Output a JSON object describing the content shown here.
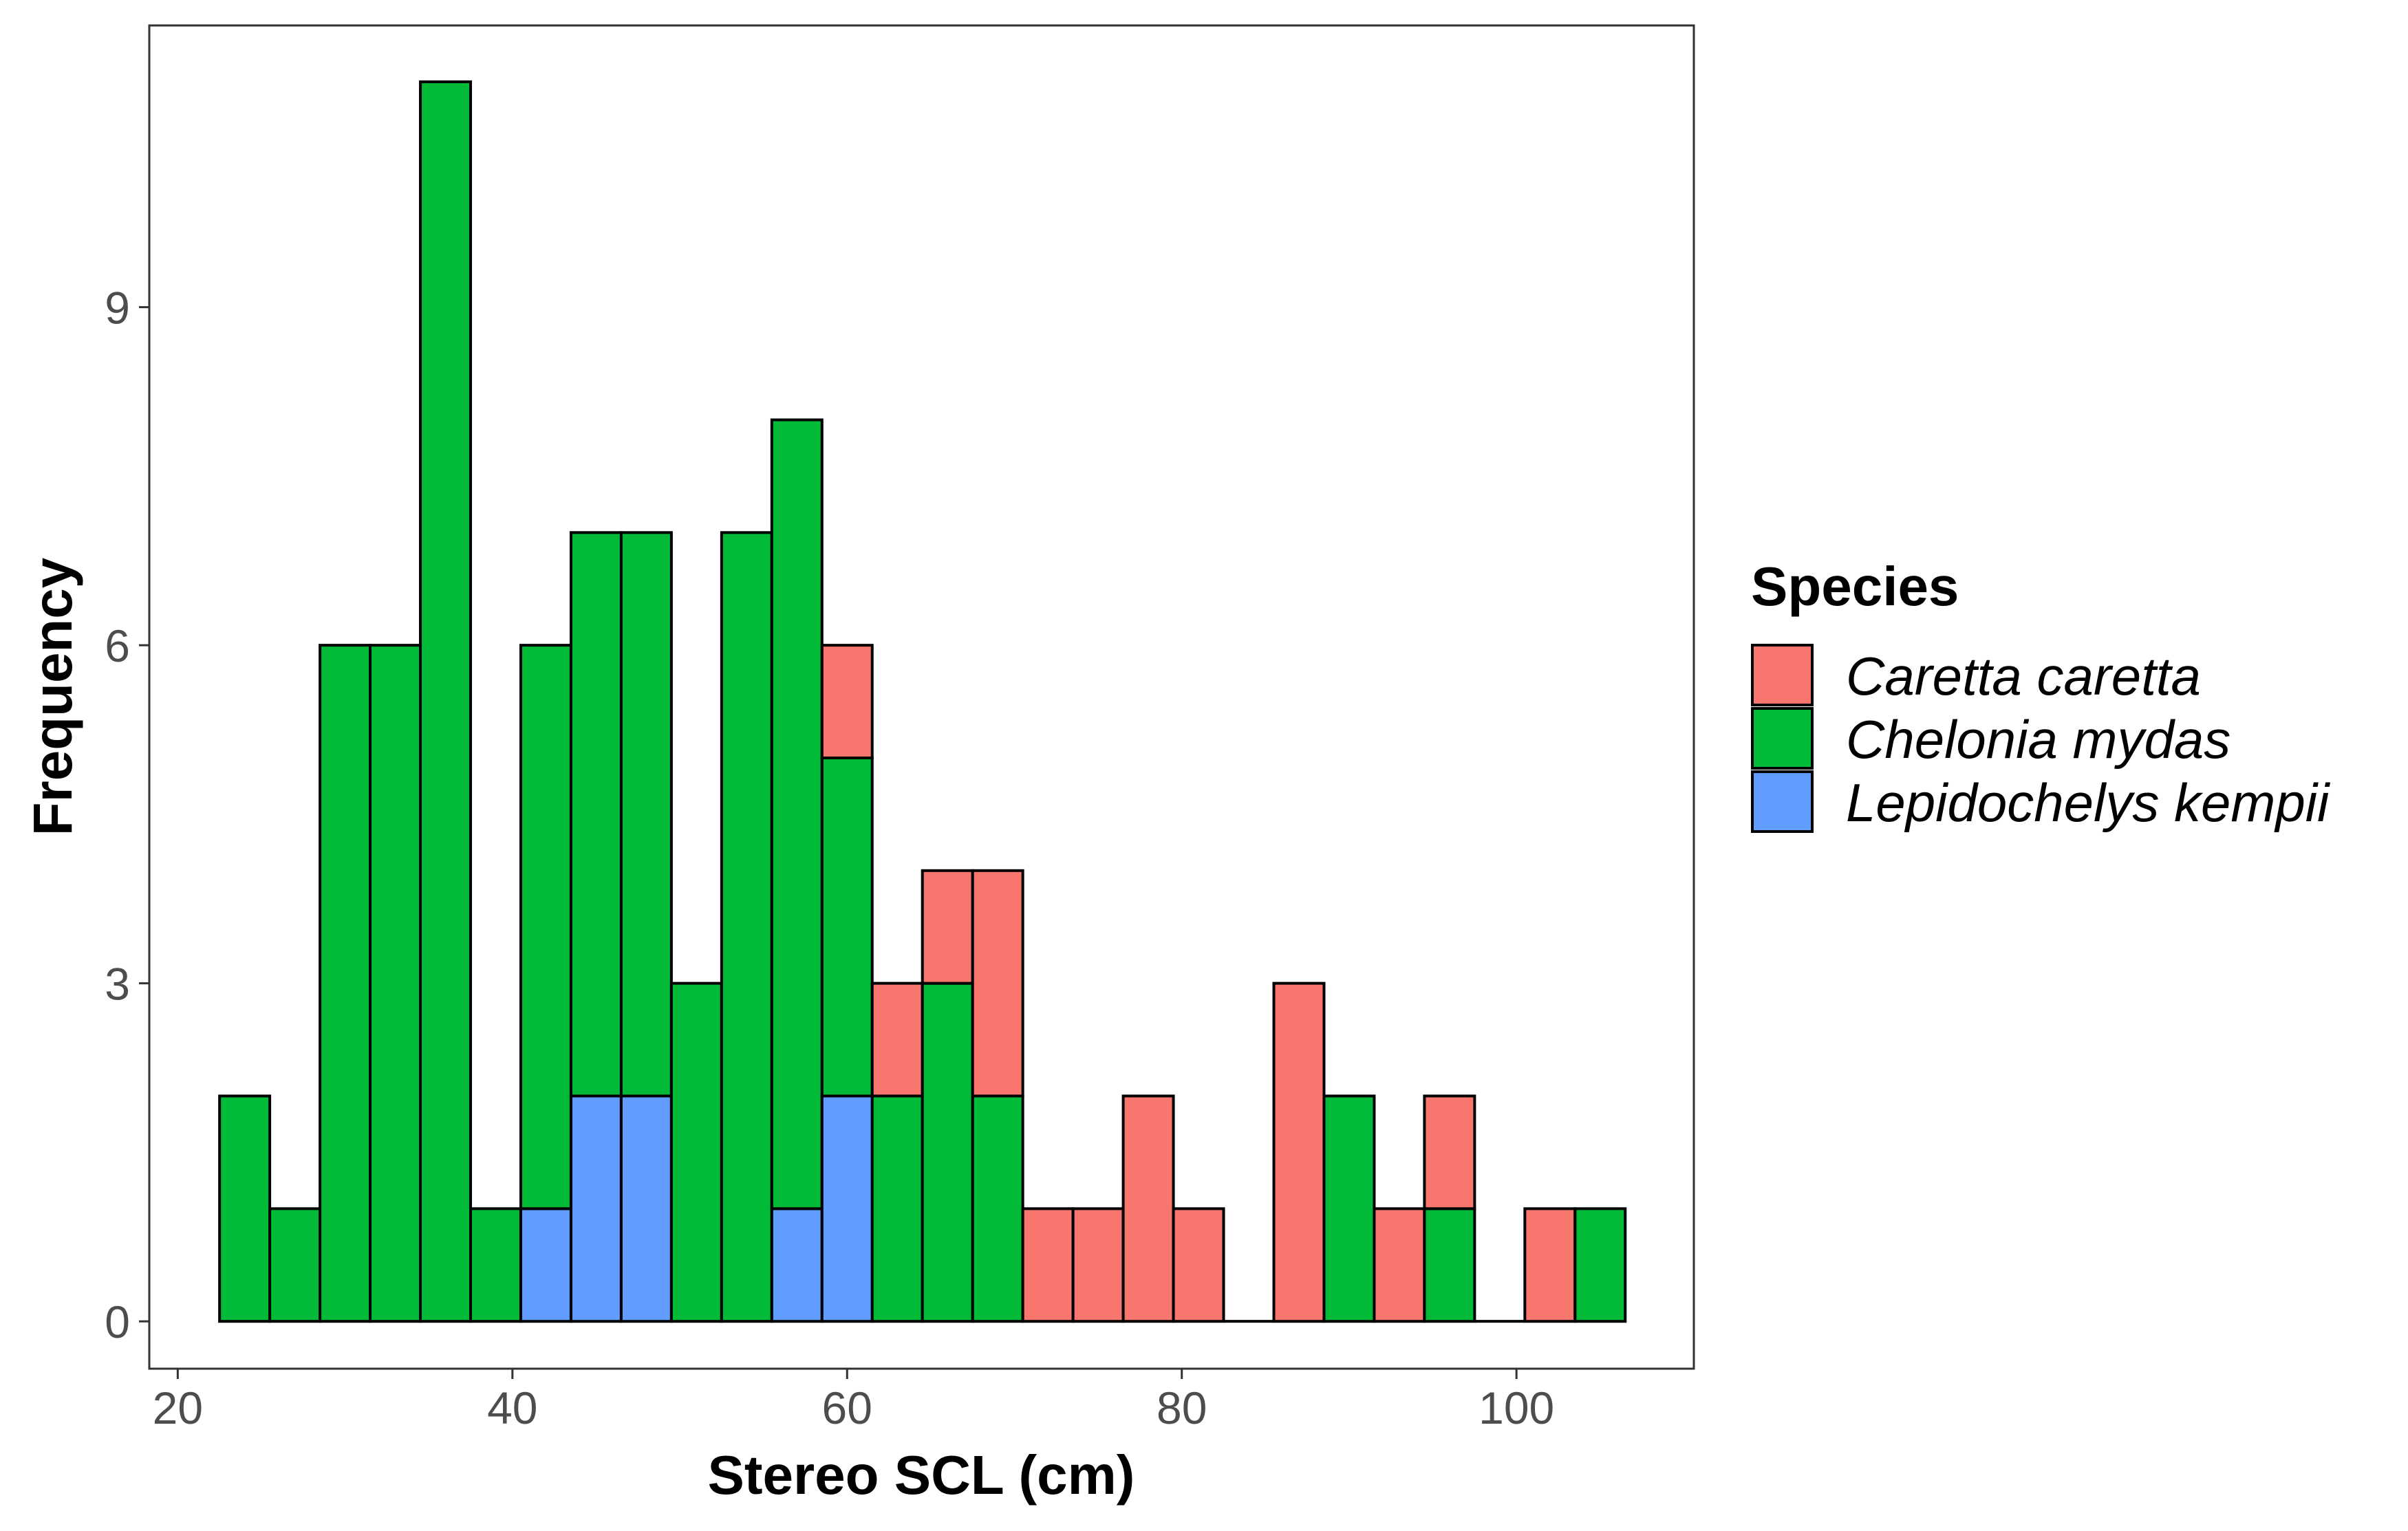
{
  "chart_data": {
    "type": "bar",
    "subtype": "stacked-histogram",
    "title": "",
    "xlabel": "Stereo SCL (cm)",
    "ylabel": "Frequency",
    "xlim": [
      18.3,
      110.6
    ],
    "ylim": [
      -0.42,
      11.5
    ],
    "x_ticks": [
      20,
      40,
      60,
      80,
      100
    ],
    "y_ticks": [
      0,
      3,
      6,
      9
    ],
    "bin_width": 3.0,
    "grid": false,
    "legend": {
      "title": "Species",
      "position": "right",
      "entries": [
        "Caretta caretta",
        "Chelonia mydas",
        "Lepidochelys kempii"
      ]
    },
    "bin_starts": [
      22.5,
      25.5,
      28.5,
      31.5,
      34.5,
      37.5,
      40.5,
      43.5,
      46.5,
      49.5,
      52.5,
      55.5,
      58.5,
      61.5,
      64.5,
      67.5,
      70.5,
      73.5,
      76.5,
      79.5,
      82.5,
      85.5,
      88.5,
      91.5,
      94.5,
      97.5,
      100.5,
      103.5
    ],
    "series": [
      {
        "name": "Lepidochelys kempii",
        "color": "#619CFF",
        "values": [
          0,
          0,
          0,
          0,
          0,
          0,
          1,
          2,
          2,
          0,
          0,
          1,
          2,
          0,
          0,
          0,
          0,
          0,
          0,
          0,
          0,
          0,
          0,
          0,
          0,
          0,
          0,
          0
        ]
      },
      {
        "name": "Chelonia mydas",
        "color": "#00BA38",
        "values": [
          2,
          1,
          6,
          6,
          11,
          1,
          5,
          5,
          5,
          3,
          7,
          7,
          3,
          2,
          3,
          2,
          0,
          0,
          0,
          0,
          0,
          0,
          2,
          0,
          1,
          0,
          0,
          1
        ]
      },
      {
        "name": "Caretta caretta",
        "color": "#F8766D",
        "values": [
          0,
          0,
          0,
          0,
          0,
          0,
          0,
          0,
          0,
          0,
          0,
          0,
          1,
          1,
          1,
          2,
          1,
          1,
          2,
          1,
          0,
          3,
          0,
          1,
          1,
          0,
          1,
          0
        ]
      }
    ]
  }
}
